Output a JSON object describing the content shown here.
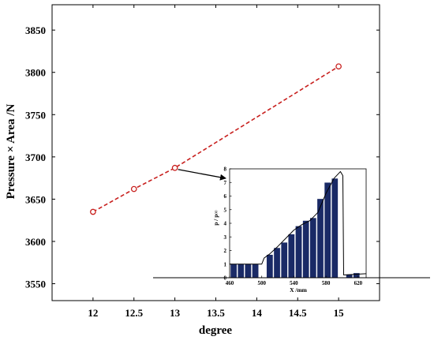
{
  "chart_data": [
    {
      "type": "line",
      "xlabel": "degree",
      "ylabel": "Pressure × Area  /N",
      "xlim": [
        11.5,
        15.5
      ],
      "ylim": [
        3530,
        3880
      ],
      "xticks": [
        "12",
        "12.5",
        "13",
        "13.5",
        "14",
        "14.5",
        "15"
      ],
      "yticks": [
        "3550",
        "3600",
        "3650",
        "3700",
        "3750",
        "3800",
        "3850"
      ],
      "series": [
        {
          "x": [
            12,
            12.5,
            13,
            15
          ],
          "y": [
            3635,
            3662,
            3687,
            3807
          ],
          "line_style": "dashed",
          "marker": "open-circle",
          "color": "#c8201e"
        }
      ],
      "annotation": {
        "type": "arrow",
        "from_point": [
          13,
          3687
        ],
        "points_to": "inset"
      },
      "grid": false,
      "legend": "none"
    },
    {
      "type": "bar",
      "role": "inset",
      "xlabel": "X /mm",
      "ylabel": "p / p∞",
      "xlim": [
        460,
        630
      ],
      "ylim": [
        0,
        8
      ],
      "xticks": [
        "460",
        "500",
        "540",
        "580",
        "620"
      ],
      "yticks": [
        "0",
        "1",
        "2",
        "3",
        "4",
        "5",
        "6",
        "7",
        "8"
      ],
      "bar_color": "#1a2a66",
      "bars": [
        {
          "x": 465,
          "value": 1.0
        },
        {
          "x": 474,
          "value": 1.0
        },
        {
          "x": 483,
          "value": 1.0
        },
        {
          "x": 492,
          "value": 1.0
        },
        {
          "x": 510,
          "value": 1.7
        },
        {
          "x": 519,
          "value": 2.2
        },
        {
          "x": 528,
          "value": 2.6
        },
        {
          "x": 537,
          "value": 3.2
        },
        {
          "x": 546,
          "value": 3.8
        },
        {
          "x": 555,
          "value": 4.2
        },
        {
          "x": 564,
          "value": 4.4
        },
        {
          "x": 573,
          "value": 5.8
        },
        {
          "x": 582,
          "value": 7.0
        },
        {
          "x": 591,
          "value": 7.3
        },
        {
          "x": 609,
          "value": 0.25
        },
        {
          "x": 618,
          "value": 0.35
        }
      ],
      "curve": {
        "x": [
          460,
          500,
          503,
          510,
          520,
          530,
          540,
          550,
          560,
          570,
          580,
          590,
          598,
          601,
          602,
          630
        ],
        "y": [
          1.0,
          1.0,
          1.45,
          1.75,
          2.3,
          2.9,
          3.5,
          3.9,
          4.2,
          4.8,
          6.2,
          7.3,
          7.8,
          7.5,
          0.2,
          0.3
        ]
      }
    }
  ]
}
